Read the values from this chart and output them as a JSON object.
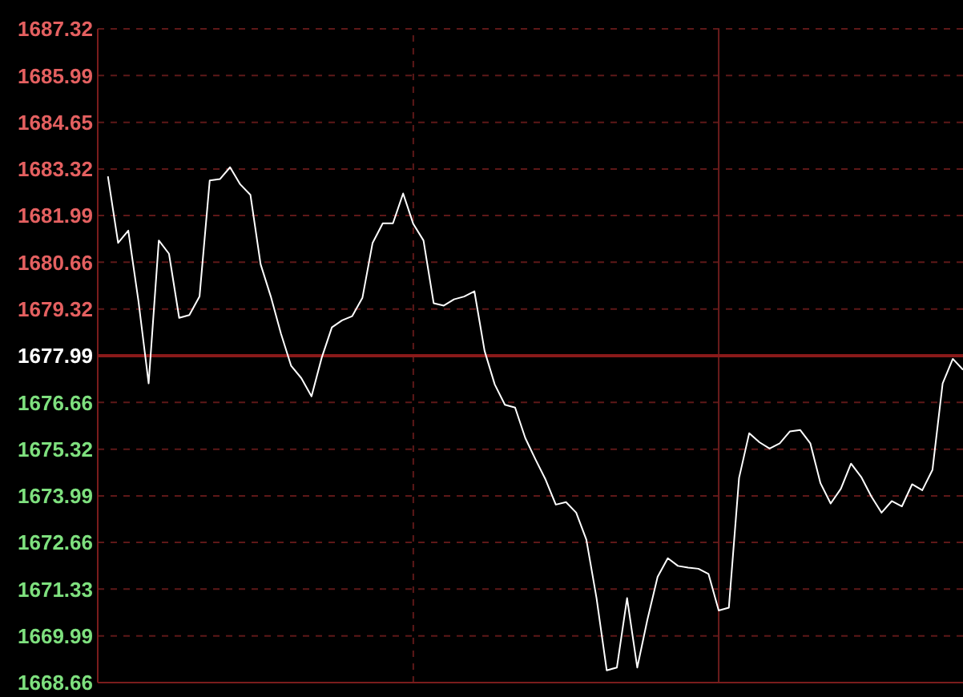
{
  "chart_data": {
    "type": "line",
    "categories": [
      null,
      null,
      null,
      null,
      null,
      null,
      null,
      null,
      null,
      null,
      null,
      null,
      null,
      null,
      null,
      null,
      null,
      null,
      null,
      null,
      null,
      null,
      null,
      null,
      null,
      null,
      null,
      null,
      null,
      null,
      null,
      null,
      null,
      null,
      null,
      null,
      null,
      null,
      null,
      null,
      null,
      null,
      null,
      null,
      null,
      null,
      null,
      null,
      null,
      null,
      null,
      null,
      null,
      null,
      null,
      null,
      null,
      null,
      null,
      null,
      null,
      null,
      null,
      null,
      null,
      null,
      null,
      null,
      null,
      null,
      null,
      null,
      null,
      null,
      null,
      null,
      null,
      null,
      null,
      null,
      null,
      null,
      null,
      null,
      null
    ],
    "series": [
      {
        "color": "#ffffff",
        "values": [
          1683.11,
          1681.21,
          1681.56,
          1679.55,
          1677.2,
          1681.28,
          1680.9,
          1679.07,
          1679.15,
          1679.68,
          1682.99,
          1683.03,
          1683.37,
          1682.88,
          1682.58,
          1680.6,
          1679.68,
          1678.62,
          1677.7,
          1677.35,
          1676.83,
          1677.93,
          1678.8,
          1679.0,
          1679.12,
          1679.64,
          1681.21,
          1681.77,
          1681.77,
          1682.62,
          1681.75,
          1681.28,
          1679.49,
          1679.42,
          1679.6,
          1679.68,
          1679.83,
          1678.13,
          1677.17,
          1676.59,
          1676.51,
          1675.64,
          1675.03,
          1674.45,
          1673.74,
          1673.81,
          1673.51,
          1672.74,
          1671.07,
          1669.01,
          1669.09,
          1671.07,
          1669.09,
          1670.46,
          1671.68,
          1672.21,
          1671.99,
          1671.94,
          1671.91,
          1671.76,
          1670.72,
          1670.8,
          1674.5,
          1675.78,
          1675.52,
          1675.34,
          1675.49,
          1675.83,
          1675.87,
          1675.49,
          1674.35,
          1673.77,
          1674.19,
          1674.91,
          1674.53,
          1673.97,
          1673.51,
          1673.84,
          1673.69,
          1674.32,
          1674.15,
          1674.73,
          1677.2,
          1677.9,
          1677.59
        ]
      }
    ],
    "ylim": [
      1668.66,
      1687.32
    ],
    "yticks": [
      1668.66,
      1669.99,
      1671.33,
      1672.66,
      1673.99,
      1675.32,
      1676.66,
      1677.99,
      1679.32,
      1680.66,
      1681.99,
      1683.32,
      1684.65,
      1685.99,
      1687.32
    ],
    "ref_lines": [
      {
        "axis": "y",
        "value": 1677.99,
        "color": "#8a1a1a",
        "line_style": "solid"
      }
    ],
    "grid": true,
    "tick_labels": "y",
    "marker": "none",
    "line_style": "solid"
  }
}
